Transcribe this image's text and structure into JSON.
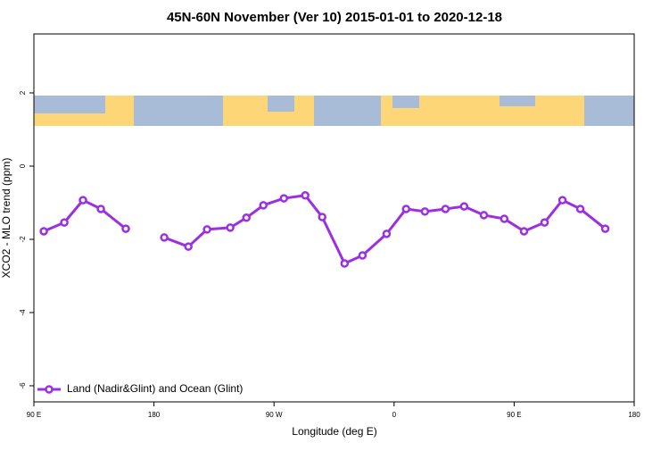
{
  "chart_data": {
    "type": "line",
    "title": "45N-60N November (Ver 10)   2015-01-01 to 2020-12-18",
    "xlabel": "Longitude (deg E)",
    "ylabel": "XCO2 - MLO trend (ppm)",
    "xlim": [
      90,
      540
    ],
    "xticks": [
      {
        "value": 90,
        "label": "90 E"
      },
      {
        "value": 180,
        "label": "180"
      },
      {
        "value": 270,
        "label": "90 W"
      },
      {
        "value": 360,
        "label": "0"
      },
      {
        "value": 450,
        "label": "90 E"
      },
      {
        "value": 540,
        "label": "180"
      }
    ],
    "ylim": [
      -6.44,
      3.61
    ],
    "yticks": [
      2,
      0,
      -2,
      -4,
      -6
    ],
    "legend": "bottom-left",
    "series": [
      {
        "name": "Land (Nadir&Glint) and Ocean (Glint)",
        "color": "#9b30e0",
        "x": [
          97.4,
          112.8,
          126.8,
          140.2,
          158.9,
          null,
          187.7,
          205.8,
          219.8,
          237.2,
          249.3,
          262,
          277.4,
          293.4,
          306.1,
          322.9,
          336.3,
          354.4,
          369,
          383.1,
          398.5,
          412.5,
          427.3,
          442.6,
          457.4,
          472.8,
          486.2,
          499.6,
          518.3
        ],
        "values": [
          -1.78,
          -1.54,
          -0.93,
          -1.17,
          -1.71,
          null,
          -1.95,
          -2.2,
          -1.73,
          -1.68,
          -1.41,
          -1.07,
          -0.88,
          -0.8,
          -1.39,
          -2.66,
          -2.44,
          -1.85,
          -1.17,
          -1.24,
          -1.17,
          -1.1,
          -1.34,
          -1.44,
          -1.78,
          -1.54,
          -0.93,
          -1.17,
          -1.71
        ]
      }
    ]
  }
}
